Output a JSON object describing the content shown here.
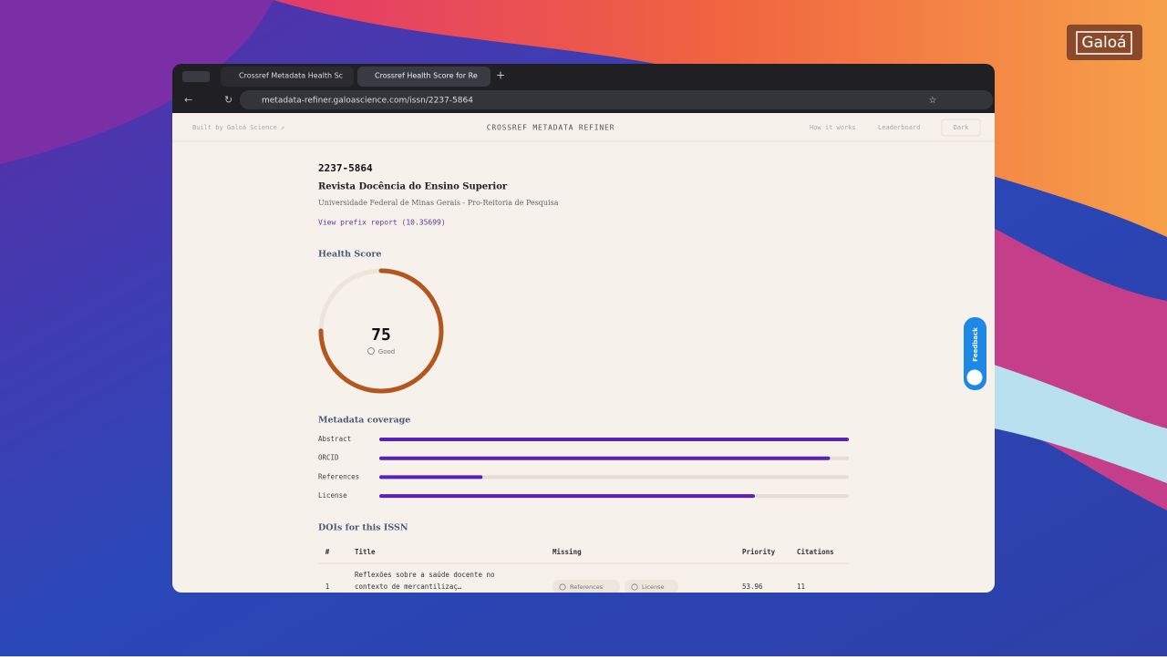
{
  "brand": "Galoá",
  "browser": {
    "tabs": [
      "Crossref Metadata Health Sc",
      "Crossref Health Score for Re"
    ],
    "url": "metadata-refiner.galoascience.com/issn/2237-5864"
  },
  "header": {
    "built_by": "Built by Galoá Science ↗",
    "title": "CROSSREF METADATA REFINER",
    "nav": [
      "How it works",
      "Leaderboard",
      "Dark"
    ]
  },
  "journal": {
    "issn": "2237-5864",
    "name": "Revista Docência do Ensino Superior",
    "publisher": "Universidade Federal de Minas Gerais - Pro-Reitoria de Pesquisa",
    "prefix_link": "View prefix report (10.35699)"
  },
  "health_score": {
    "title": "Health Score",
    "value": 75,
    "label": "Good"
  },
  "coverage": {
    "title": "Metadata coverage",
    "items": [
      {
        "name": "Abstract",
        "value": 100
      },
      {
        "name": "ORCID",
        "value": 96
      },
      {
        "name": "References",
        "value": 22
      },
      {
        "name": "License",
        "value": 80
      }
    ]
  },
  "dois": {
    "title": "DOIs for this ISSN",
    "columns": [
      "#",
      "Title",
      "Missing",
      "Priority",
      "Citations"
    ],
    "rows": [
      {
        "index": 1,
        "title_lines": [
          "Reflexões sobre a saúde docente no",
          "contexto de mercantilizaç…"
        ],
        "missing": [
          "References",
          "License"
        ],
        "priority": 53.96,
        "citations": 11
      }
    ]
  },
  "feedback": "Feedback"
}
